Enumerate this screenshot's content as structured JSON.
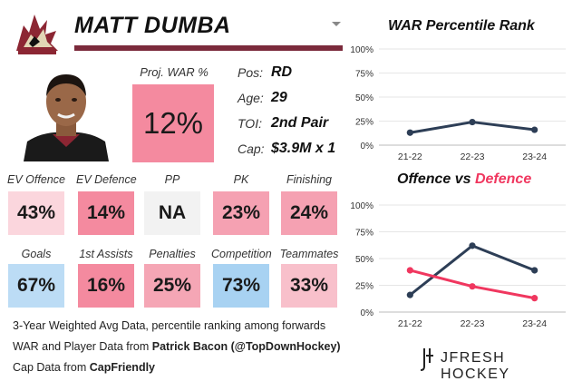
{
  "player": {
    "name": "MATT DUMBA",
    "proj_war_label": "Proj. WAR %",
    "proj_war_value": "12%",
    "proj_war_color": "#f48a9f"
  },
  "info": [
    {
      "label": "Pos:",
      "value": "RD"
    },
    {
      "label": "Age:",
      "value": "29"
    },
    {
      "label": "TOI:",
      "value": "2nd Pair"
    },
    {
      "label": "Cap:",
      "value": "$3.9M x 1"
    }
  ],
  "stats_row1": [
    {
      "label": "EV Offence",
      "value": "43%",
      "color": "#fbd6dd"
    },
    {
      "label": "EV Defence",
      "value": "14%",
      "color": "#f48a9f"
    },
    {
      "label": "PP",
      "value": "NA",
      "color": "#f2f2f2"
    },
    {
      "label": "PK",
      "value": "23%",
      "color": "#f5a1b2"
    },
    {
      "label": "Finishing",
      "value": "24%",
      "color": "#f5a1b2"
    }
  ],
  "stats_row2": [
    {
      "label": "Goals",
      "value": "67%",
      "color": "#bcdcf5"
    },
    {
      "label": "1st Assists",
      "value": "16%",
      "color": "#f48a9f"
    },
    {
      "label": "Penalties",
      "value": "25%",
      "color": "#f5a6b5"
    },
    {
      "label": "Competition",
      "value": "73%",
      "color": "#a8d2f2"
    },
    {
      "label": "Teammates",
      "value": "33%",
      "color": "#f8c0cb"
    }
  ],
  "footer": {
    "line1": "3-Year Weighted Avg Data, percentile ranking among forwards",
    "line2_prefix": "WAR and Player Data from ",
    "line2_bold": "Patrick Bacon (@TopDownHockey)",
    "line3_prefix": "Cap Data from ",
    "line3_bold": "CapFriendly",
    "brand": "JFRESH HOCKEY"
  },
  "chart_data": [
    {
      "type": "line",
      "title": "WAR Percentile Rank",
      "categories": [
        "21-22",
        "22-23",
        "23-24"
      ],
      "y_ticks": [
        "0%",
        "25%",
        "50%",
        "75%",
        "100%"
      ],
      "ylim": [
        0,
        100
      ],
      "series": [
        {
          "values": [
            13,
            24,
            16
          ],
          "color": "#2d3e56"
        }
      ]
    },
    {
      "type": "line",
      "title_part1": "Offence vs ",
      "title_part2": "Defence",
      "title_part2_color": "#f0375f",
      "categories": [
        "21-22",
        "22-23",
        "23-24"
      ],
      "y_ticks": [
        "0%",
        "25%",
        "50%",
        "75%",
        "100%"
      ],
      "ylim": [
        0,
        100
      ],
      "series": [
        {
          "values": [
            16,
            62,
            39
          ],
          "color": "#2d3e56"
        },
        {
          "values": [
            39,
            24,
            13
          ],
          "color": "#f0375f"
        }
      ]
    }
  ]
}
